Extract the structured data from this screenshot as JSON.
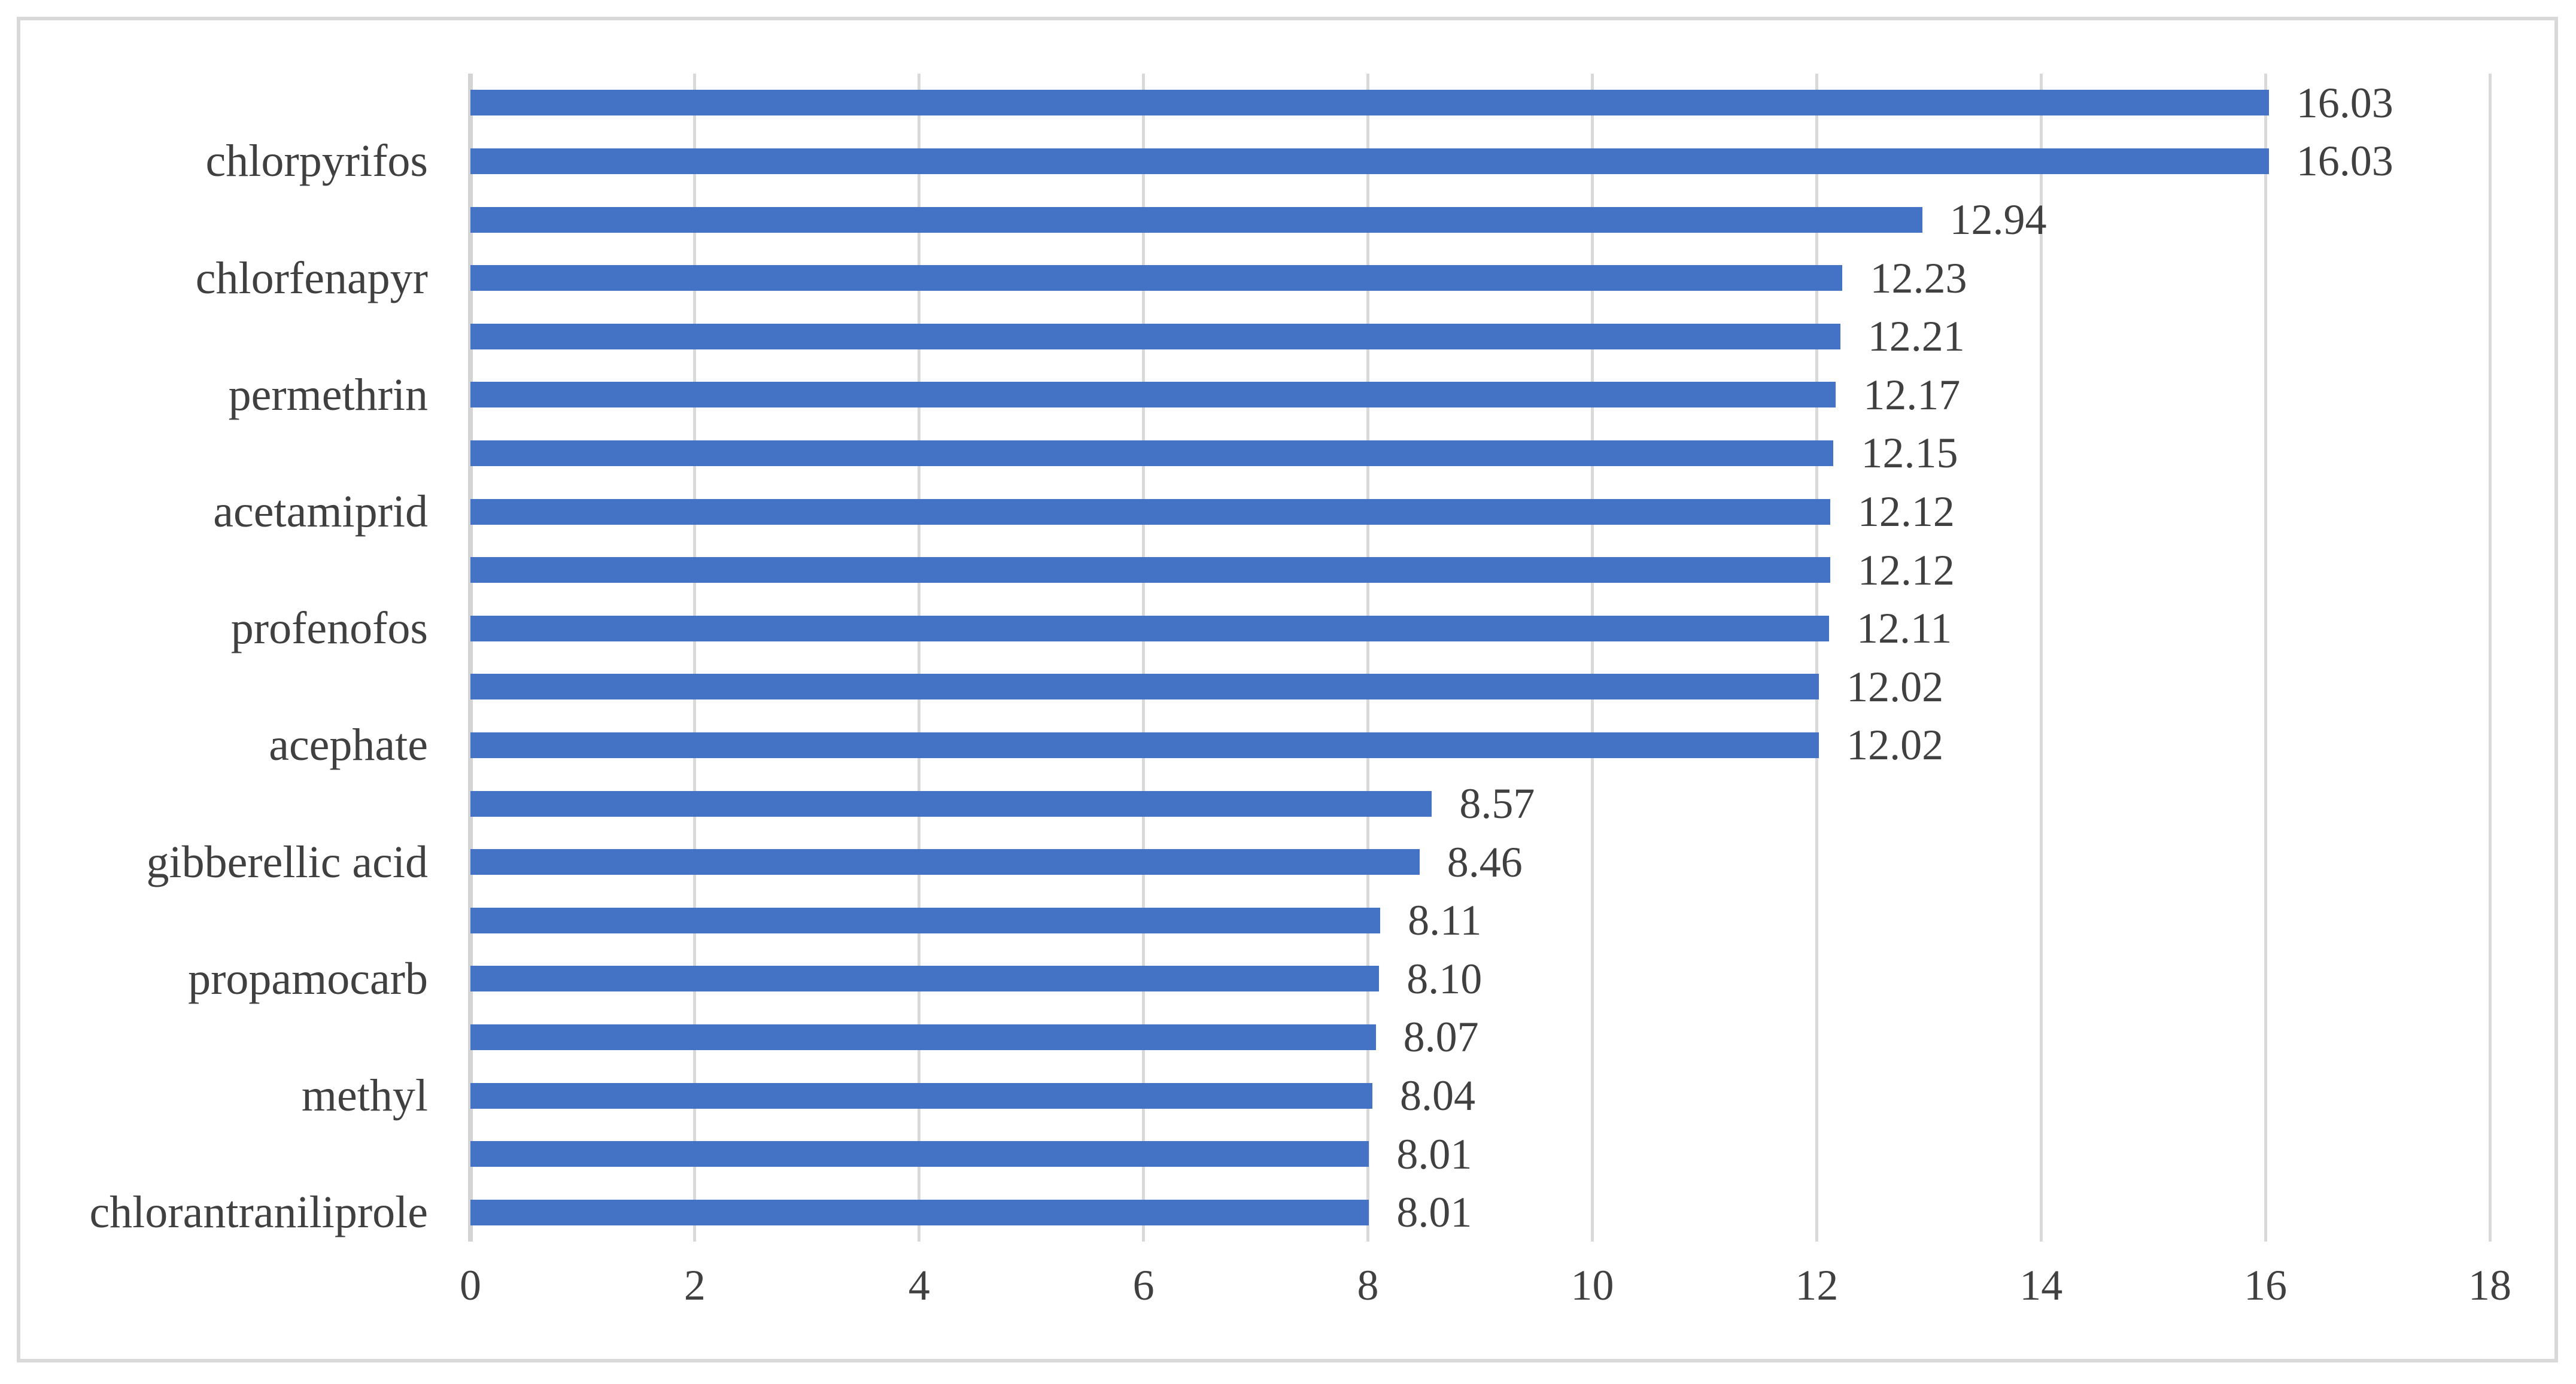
{
  "chart_data": {
    "type": "bar",
    "orientation": "horizontal",
    "title": "",
    "xlabel": "",
    "ylabel": "",
    "xlim": [
      0,
      18
    ],
    "x_ticks": [
      "0",
      "2",
      "4",
      "6",
      "8",
      "10",
      "12",
      "14",
      "16",
      "18"
    ],
    "grid": "vertical-gridlines-on",
    "legend": "none",
    "colors": {
      "bar": "#4472C4",
      "text": "#404040",
      "gridline": "#D9D9D9",
      "axis_line": "#D4D4D4",
      "figure_border": "#D9D9D9",
      "background": "#FFFFFF"
    },
    "bars": [
      {
        "category": "",
        "value": "16.03"
      },
      {
        "category": "chlorpyrifos",
        "value": "16.03"
      },
      {
        "category": "",
        "value": "12.94"
      },
      {
        "category": "chlorfenapyr",
        "value": "12.23"
      },
      {
        "category": "",
        "value": "12.21"
      },
      {
        "category": "permethrin",
        "value": "12.17"
      },
      {
        "category": "",
        "value": "12.15"
      },
      {
        "category": "acetamiprid",
        "value": "12.12"
      },
      {
        "category": "",
        "value": "12.12"
      },
      {
        "category": "profenofos",
        "value": "12.11"
      },
      {
        "category": "",
        "value": "12.02"
      },
      {
        "category": "acephate",
        "value": "12.02"
      },
      {
        "category": "",
        "value": "8.57"
      },
      {
        "category": "gibberellic acid",
        "value": "8.46"
      },
      {
        "category": "",
        "value": "8.11"
      },
      {
        "category": "propamocarb",
        "value": "8.10"
      },
      {
        "category": "",
        "value": "8.07"
      },
      {
        "category": "methyl",
        "value": "8.04"
      },
      {
        "category": "",
        "value": "8.01"
      },
      {
        "category": "chlorantraniliprole",
        "value": "8.01"
      }
    ]
  }
}
